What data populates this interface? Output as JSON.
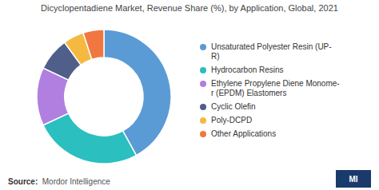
{
  "chart_data": {
    "type": "pie",
    "title": "Dicyclopentadiene Market, Revenue Share (%), by Application, Global, 2021",
    "categories": [
      "Unsaturated Polyester Resin (UP-\nR)",
      "Hydrocarbon Resins",
      "Ethylene Propylene Diene Monome-\nr (EPDM) Elastomers",
      "Cyclic Olefin",
      "Poly-DCPD",
      "Other Applications"
    ],
    "values": [
      42,
      26,
      14,
      8,
      5,
      5
    ],
    "colors": [
      "#5b9bd5",
      "#2bbfbf",
      "#b07fe0",
      "#4f5f8a",
      "#f5b942",
      "#f07840"
    ],
    "legend": "right",
    "annotations": [
      "Source:",
      "  Mordor Intelligence",
      "MI"
    ]
  }
}
